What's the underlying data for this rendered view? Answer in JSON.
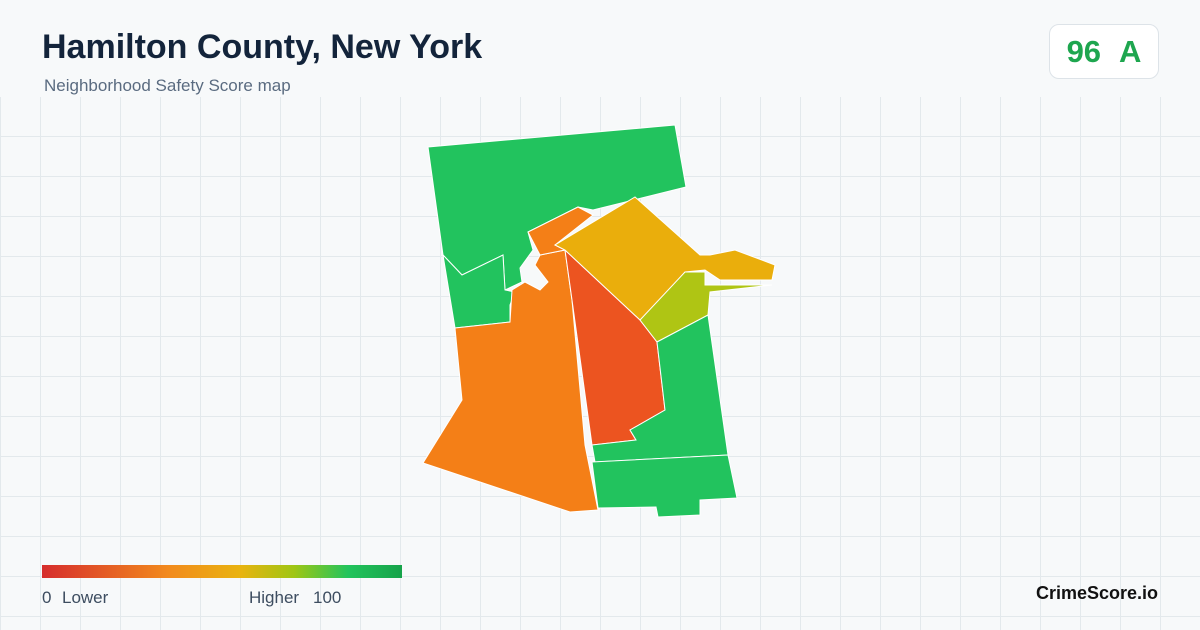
{
  "header": {
    "title": "Hamilton County, New York",
    "subtitle": "Neighborhood Safety Score map"
  },
  "score": {
    "value": 96,
    "grade": "A"
  },
  "legend": {
    "min": 0,
    "low_label": "Lower",
    "high_label": "Higher",
    "max": 100
  },
  "brand": "CrimeScore.io"
}
